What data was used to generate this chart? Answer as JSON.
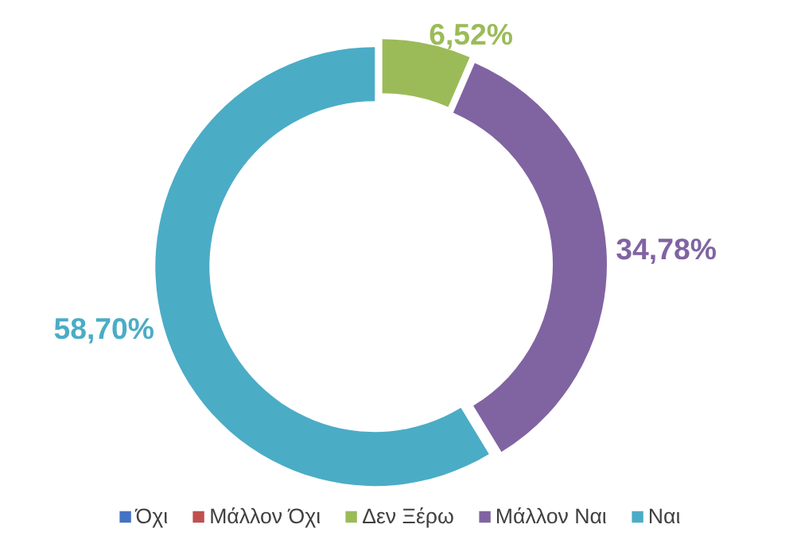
{
  "chart_data": {
    "type": "donut",
    "categories": [
      "Όχι",
      "Μάλλον Όχι",
      "Δεν Ξέρω",
      "Μάλλον Ναι",
      "Ναι"
    ],
    "values": [
      0,
      0,
      6.52,
      34.78,
      58.7
    ],
    "colors": [
      "#4472c4",
      "#c0504d",
      "#9bbb59",
      "#8064a2",
      "#4bacc6"
    ],
    "value_labels": [
      null,
      null,
      "6,52%",
      "34,78%",
      "58,70%"
    ],
    "legend": "bottom"
  }
}
